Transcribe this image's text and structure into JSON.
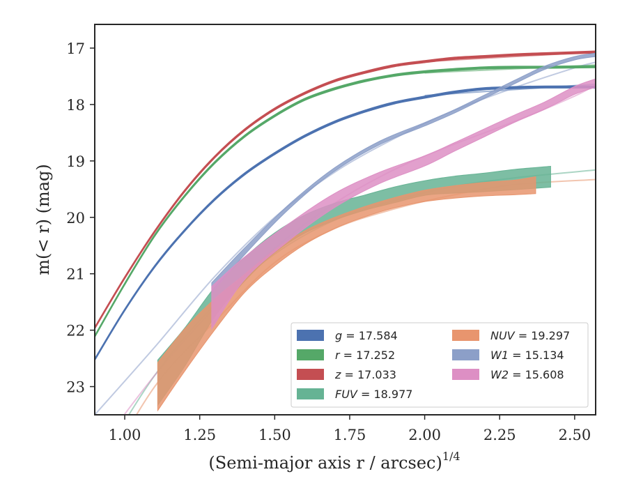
{
  "chart_data": {
    "type": "line",
    "title": "",
    "xlabel": "(Semi-major axis r / arcsec)",
    "xlabel_italic": "r",
    "xlabel_exponent": "1/4",
    "ylabel": "m(< r) (mag)",
    "xlim": [
      0.9,
      2.57
    ],
    "ylim": [
      23.5,
      16.58
    ],
    "y_inverted": true,
    "grid": false,
    "legend_position": "lower-right",
    "xticks": [
      1.0,
      1.25,
      1.5,
      1.75,
      2.0,
      2.25,
      2.5
    ],
    "xtick_labels": [
      "1.00",
      "1.25",
      "1.50",
      "1.75",
      "2.00",
      "2.25",
      "2.50"
    ],
    "yticks": [
      17,
      18,
      19,
      20,
      21,
      22,
      23
    ],
    "ytick_labels": [
      "17",
      "18",
      "19",
      "20",
      "21",
      "22",
      "23"
    ],
    "series": [
      {
        "name": "g = 17.584",
        "band": "g",
        "mag": "17.584",
        "color": "#4c72b0",
        "x": [
          0.9,
          1.0,
          1.1,
          1.2,
          1.3,
          1.4,
          1.5,
          1.6,
          1.7,
          1.8,
          1.9,
          2.0,
          2.1,
          2.2,
          2.3,
          2.4,
          2.57
        ],
        "y": [
          22.52,
          21.64,
          20.87,
          20.23,
          19.68,
          19.23,
          18.87,
          18.56,
          18.31,
          18.12,
          17.97,
          17.87,
          17.78,
          17.72,
          17.7,
          17.69,
          17.69
        ],
        "width": [
          0.04
        ],
        "model_x": [
          2.0,
          2.57
        ],
        "model_y": [
          17.84,
          17.64
        ]
      },
      {
        "name": "r = 17.252",
        "band": "r",
        "mag": "17.252",
        "color": "#55a868",
        "x": [
          0.9,
          1.0,
          1.1,
          1.2,
          1.3,
          1.4,
          1.5,
          1.6,
          1.7,
          1.8,
          1.9,
          2.0,
          2.1,
          2.2,
          2.3,
          2.4,
          2.57
        ],
        "y": [
          22.11,
          21.18,
          20.32,
          19.62,
          19.03,
          18.56,
          18.2,
          17.91,
          17.72,
          17.58,
          17.48,
          17.42,
          17.38,
          17.35,
          17.34,
          17.34,
          17.33
        ],
        "width": [
          0.04
        ],
        "model_x": [
          2.0,
          2.57
        ],
        "model_y": [
          17.44,
          17.3
        ]
      },
      {
        "name": "z = 17.033",
        "band": "z",
        "mag": "17.033",
        "color": "#c44e52",
        "x": [
          0.9,
          1.0,
          1.1,
          1.2,
          1.3,
          1.4,
          1.5,
          1.6,
          1.7,
          1.8,
          1.9,
          2.0,
          2.1,
          2.2,
          2.3,
          2.4,
          2.57
        ],
        "y": [
          21.96,
          21.07,
          20.25,
          19.53,
          18.93,
          18.45,
          18.08,
          17.8,
          17.58,
          17.43,
          17.31,
          17.24,
          17.18,
          17.15,
          17.12,
          17.1,
          17.07
        ],
        "width": [
          0.04
        ],
        "model_x": [
          2.0,
          2.57
        ],
        "model_y": [
          17.24,
          17.07
        ]
      },
      {
        "name": "FUV = 18.977",
        "band": "FUV",
        "mag": "18.977",
        "color": "#66b394",
        "x": [
          1.11,
          1.2,
          1.3,
          1.4,
          1.5,
          1.6,
          1.7,
          1.8,
          1.9,
          2.0,
          2.1,
          2.2,
          2.3,
          2.42
        ],
        "y": [
          22.93,
          22.3,
          21.5,
          20.92,
          20.45,
          20.12,
          19.9,
          19.74,
          19.6,
          19.48,
          19.42,
          19.38,
          19.33,
          19.28
        ],
        "width": [
          0.8,
          0.68,
          0.52,
          0.42,
          0.35,
          0.32,
          0.3,
          0.27,
          0.28,
          0.26,
          0.3,
          0.33,
          0.36,
          0.37
        ],
        "model_x": [
          0.9,
          1.1,
          1.3,
          1.5,
          1.7,
          1.9,
          2.1,
          2.3,
          2.57
        ],
        "model_y": [
          24.5,
          22.8,
          21.55,
          20.65,
          20.05,
          19.7,
          19.45,
          19.3,
          19.16
        ]
      },
      {
        "name": "NUV = 19.297",
        "band": "NUV",
        "mag": "19.297",
        "color": "#e8956e",
        "x": [
          1.11,
          1.2,
          1.3,
          1.4,
          1.5,
          1.6,
          1.7,
          1.8,
          1.9,
          2.0,
          2.1,
          2.2,
          2.3,
          2.37
        ],
        "y": [
          23.0,
          22.35,
          21.72,
          21.17,
          20.72,
          20.36,
          20.1,
          19.9,
          19.74,
          19.62,
          19.55,
          19.5,
          19.47,
          19.43
        ],
        "width": [
          0.85,
          0.75,
          0.55,
          0.32,
          0.28,
          0.24,
          0.2,
          0.18,
          0.18,
          0.2,
          0.22,
          0.24,
          0.26,
          0.3
        ],
        "model_x": [
          0.9,
          1.1,
          1.3,
          1.5,
          1.7,
          1.9,
          2.1,
          2.3,
          2.57
        ],
        "model_y": [
          24.8,
          23.0,
          21.85,
          20.8,
          20.2,
          19.85,
          19.6,
          19.42,
          19.33
        ]
      },
      {
        "name": "W1 = 15.134",
        "band": "W1",
        "mag": "15.134",
        "color": "#8c9fc8",
        "x": [
          1.29,
          1.4,
          1.55,
          1.7,
          1.85,
          2.0,
          2.1,
          2.2,
          2.3,
          2.4,
          2.5,
          2.57
        ],
        "y": [
          21.25,
          20.6,
          19.8,
          19.15,
          18.68,
          18.35,
          18.12,
          17.86,
          17.6,
          17.35,
          17.18,
          17.12
        ],
        "width": [
          0.18,
          0.12,
          0.08,
          0.06,
          0.06,
          0.06,
          0.06,
          0.06,
          0.06,
          0.06,
          0.06,
          0.06
        ],
        "model_x": [
          0.9,
          1.1,
          1.3,
          1.5,
          1.7,
          1.9,
          2.1,
          2.3,
          2.5,
          2.57
        ],
        "model_y": [
          23.5,
          22.3,
          21.05,
          20.0,
          19.2,
          18.6,
          18.1,
          17.7,
          17.35,
          17.25
        ]
      },
      {
        "name": "W2 = 15.608",
        "band": "W2",
        "mag": "15.608",
        "color": "#dd8fc4",
        "x": [
          1.29,
          1.4,
          1.55,
          1.7,
          1.85,
          2.0,
          2.1,
          2.2,
          2.3,
          2.4,
          2.5,
          2.57
        ],
        "y": [
          21.6,
          20.9,
          20.25,
          19.7,
          19.3,
          19.0,
          18.75,
          18.5,
          18.25,
          18.02,
          17.75,
          17.62
        ],
        "width": [
          0.75,
          0.4,
          0.3,
          0.25,
          0.2,
          0.18,
          0.15,
          0.14,
          0.13,
          0.13,
          0.14,
          0.15
        ],
        "model_x": [
          0.9,
          1.1,
          1.3,
          1.5,
          1.7,
          1.9,
          2.1,
          2.3,
          2.5,
          2.57
        ],
        "model_y": [
          24.2,
          22.8,
          21.6,
          20.55,
          19.75,
          19.15,
          18.7,
          18.3,
          17.85,
          17.65
        ]
      }
    ]
  }
}
